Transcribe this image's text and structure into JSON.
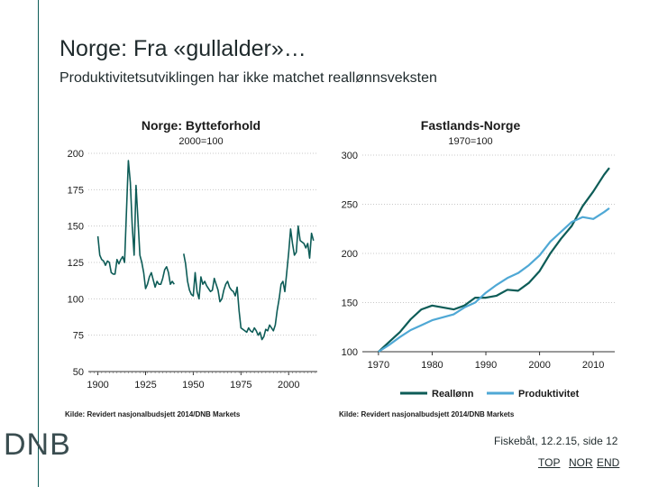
{
  "slide": {
    "title": "Norge: Fra «gullalder»…",
    "subtitle": "Produktivitetsutviklingen har ikke matchet reallønnsveksten",
    "logo": "DNB",
    "footer": "Fiskebåt, 12.2.15, side 12",
    "nav": [
      "TOP",
      "NOR",
      "END"
    ]
  },
  "colors": {
    "accent_line": "#0d5c57",
    "series_dark": "#0d5c57",
    "series_light": "#4fa8d5"
  },
  "chart_data": [
    {
      "type": "line",
      "title": "Norge: Bytteforhold",
      "subtitle": "2000=100",
      "source": "Kilde: Revidert nasjonalbudsjett 2014/DNB Markets",
      "xlim": [
        1895,
        2015
      ],
      "ylim": [
        50,
        200
      ],
      "xticks": [
        1900,
        1925,
        1950,
        1975,
        2000
      ],
      "yticks": [
        50,
        75,
        100,
        125,
        150,
        175,
        200
      ],
      "grid": "horizontal",
      "series": [
        {
          "segments": [
            [
              [
                1900,
                143
              ],
              [
                1901,
                130
              ],
              [
                1902,
                127
              ],
              [
                1903,
                126
              ],
              [
                1904,
                123
              ],
              [
                1905,
                126
              ],
              [
                1906,
                125
              ],
              [
                1907,
                118
              ],
              [
                1908,
                117
              ],
              [
                1909,
                117
              ],
              [
                1910,
                127
              ],
              [
                1911,
                124
              ],
              [
                1912,
                127
              ],
              [
                1913,
                129
              ],
              [
                1914,
                125
              ],
              [
                1915,
                160
              ],
              [
                1916,
                195
              ],
              [
                1917,
                180
              ],
              [
                1918,
                150
              ],
              [
                1919,
                130
              ],
              [
                1920,
                178
              ],
              [
                1921,
                155
              ],
              [
                1922,
                130
              ],
              [
                1923,
                125
              ],
              [
                1924,
                118
              ],
              [
                1925,
                107
              ],
              [
                1926,
                110
              ],
              [
                1927,
                115
              ],
              [
                1928,
                118
              ],
              [
                1929,
                113
              ],
              [
                1930,
                108
              ],
              [
                1931,
                112
              ],
              [
                1932,
                110
              ],
              [
                1933,
                110
              ],
              [
                1934,
                114
              ],
              [
                1935,
                120
              ],
              [
                1936,
                122
              ],
              [
                1937,
                118
              ],
              [
                1938,
                110
              ],
              [
                1939,
                112
              ],
              [
                1940,
                110
              ]
            ],
            [
              [
                1945,
                131
              ],
              [
                1946,
                124
              ],
              [
                1947,
                112
              ],
              [
                1948,
                106
              ],
              [
                1949,
                103
              ],
              [
                1950,
                102
              ],
              [
                1951,
                118
              ],
              [
                1952,
                105
              ],
              [
                1953,
                100
              ],
              [
                1954,
                115
              ],
              [
                1955,
                110
              ],
              [
                1956,
                112
              ],
              [
                1957,
                109
              ],
              [
                1958,
                107
              ],
              [
                1959,
                105
              ],
              [
                1960,
                106
              ],
              [
                1961,
                114
              ],
              [
                1962,
                110
              ],
              [
                1963,
                106
              ],
              [
                1964,
                98
              ],
              [
                1965,
                100
              ],
              [
                1966,
                106
              ],
              [
                1967,
                110
              ],
              [
                1968,
                112
              ],
              [
                1969,
                108
              ],
              [
                1970,
                106
              ],
              [
                1971,
                105
              ],
              [
                1972,
                102
              ],
              [
                1973,
                108
              ],
              [
                1974,
                92
              ],
              [
                1975,
                80
              ],
              [
                1976,
                79
              ],
              [
                1977,
                78
              ],
              [
                1978,
                77
              ],
              [
                1979,
                80
              ],
              [
                1980,
                78
              ],
              [
                1981,
                77
              ],
              [
                1982,
                80
              ],
              [
                1983,
                78
              ],
              [
                1984,
                75
              ],
              [
                1985,
                77
              ],
              [
                1986,
                72
              ],
              [
                1987,
                74
              ],
              [
                1988,
                79
              ],
              [
                1989,
                78
              ],
              [
                1990,
                82
              ],
              [
                1991,
                80
              ],
              [
                1992,
                78
              ],
              [
                1993,
                82
              ],
              [
                1994,
                92
              ],
              [
                1995,
                100
              ],
              [
                1996,
                110
              ],
              [
                1997,
                112
              ],
              [
                1998,
                105
              ],
              [
                1999,
                118
              ],
              [
                2000,
                132
              ],
              [
                2001,
                148
              ],
              [
                2002,
                138
              ],
              [
                2003,
                130
              ],
              [
                2004,
                132
              ],
              [
                2005,
                150
              ],
              [
                2006,
                140
              ],
              [
                2007,
                139
              ],
              [
                2008,
                138
              ],
              [
                2009,
                135
              ],
              [
                2010,
                138
              ],
              [
                2011,
                128
              ],
              [
                2012,
                145
              ],
              [
                2013,
                140
              ]
            ]
          ]
        }
      ]
    },
    {
      "type": "line",
      "title": "Fastlands-Norge",
      "subtitle": "1970=100",
      "source": "Kilde: Revidert nasjonalbudsjett 2014/DNB Markets",
      "xlim": [
        1967,
        2014
      ],
      "ylim": [
        100,
        300
      ],
      "xticks": [
        1970,
        1980,
        1990,
        2000,
        2010
      ],
      "yticks": [
        100,
        150,
        200,
        250,
        300
      ],
      "grid": "horizontal",
      "legend_position": "bottom",
      "series": [
        {
          "name": "Reallønn",
          "x": [
            1970,
            1972,
            1974,
            1976,
            1978,
            1980,
            1982,
            1984,
            1986,
            1988,
            1990,
            1992,
            1994,
            1996,
            1998,
            2000,
            2002,
            2004,
            2006,
            2008,
            2010,
            2012,
            2013
          ],
          "values": [
            100,
            110,
            120,
            133,
            143,
            147,
            145,
            143,
            147,
            155,
            155,
            157,
            163,
            162,
            170,
            182,
            200,
            215,
            228,
            248,
            263,
            280,
            287
          ]
        },
        {
          "name": "Produktivitet",
          "x": [
            1970,
            1972,
            1974,
            1976,
            1978,
            1980,
            1982,
            1984,
            1986,
            1988,
            1990,
            1992,
            1994,
            1996,
            1998,
            2000,
            2002,
            2004,
            2006,
            2008,
            2010,
            2012,
            2013
          ],
          "values": [
            100,
            107,
            115,
            122,
            127,
            132,
            135,
            138,
            145,
            150,
            160,
            168,
            175,
            180,
            188,
            198,
            212,
            222,
            232,
            237,
            235,
            242,
            246
          ]
        }
      ]
    }
  ]
}
